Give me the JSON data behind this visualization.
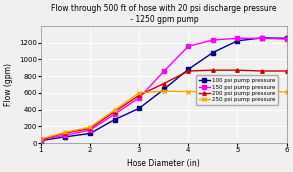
{
  "title": "Flow through 500 ft of hose with 20 psi discharge pressure\n - 1250 gpm pump",
  "xlabel": "Hose Diameter (in)",
  "ylabel": "Flow (gpm)",
  "xlim": [
    1,
    6
  ],
  "ylim": [
    0,
    1400
  ],
  "yticks": [
    0,
    200,
    400,
    600,
    800,
    1000,
    1200
  ],
  "xticks": [
    1,
    2,
    3,
    4,
    5,
    6
  ],
  "bg_color": "#f0f0f0",
  "series": [
    {
      "label": "100 psi pump pressure",
      "color": "#00008B",
      "marker": "s",
      "x": [
        1,
        1.5,
        2,
        2.5,
        3,
        3.5,
        4,
        4.5,
        5,
        5.5,
        6
      ],
      "y": [
        30,
        75,
        115,
        280,
        415,
        640,
        880,
        1080,
        1220,
        1255,
        1250
      ]
    },
    {
      "label": "150 psi pump pressure",
      "color": "#FF00FF",
      "marker": "s",
      "x": [
        1,
        1.5,
        2,
        2.5,
        3,
        3.5,
        4,
        4.5,
        5,
        5.5,
        6
      ],
      "y": [
        38,
        95,
        155,
        345,
        540,
        855,
        1155,
        1230,
        1250,
        1250,
        1240
      ]
    },
    {
      "label": "200 psi pump pressure",
      "color": "#CC0000",
      "marker": "^",
      "x": [
        1,
        1.5,
        2,
        2.5,
        3,
        3.5,
        4,
        4.5,
        5,
        5.5,
        6
      ],
      "y": [
        45,
        120,
        175,
        375,
        570,
        710,
        860,
        870,
        870,
        860,
        860
      ]
    },
    {
      "label": "250 psi pump pressure",
      "color": "#FFA500",
      "marker": "x",
      "x": [
        1,
        1.5,
        2,
        2.5,
        3,
        3.5,
        4,
        4.5,
        5,
        5.5,
        6
      ],
      "y": [
        50,
        130,
        190,
        395,
        600,
        620,
        615,
        615,
        615,
        610,
        610
      ]
    }
  ]
}
